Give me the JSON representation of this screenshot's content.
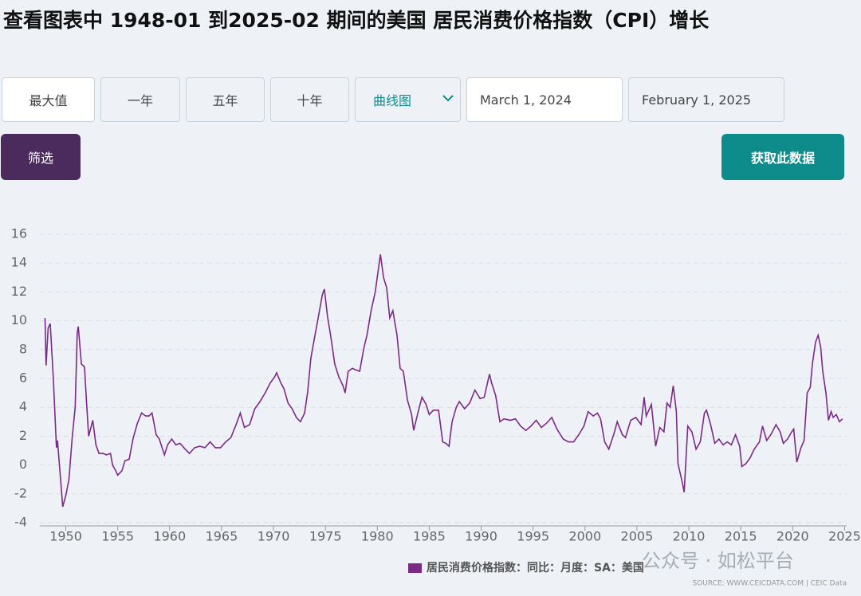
{
  "header": {
    "title": "查看图表中 1948-01 到2025-02 期间的美国 居民消费价格指数（CPI）增长"
  },
  "controls": {
    "ranges": [
      "最大值",
      "一年",
      "五年",
      "十年"
    ],
    "chart_type": "曲线图",
    "start_date": "March 1, 2024",
    "end_date": "February 1, 2025",
    "filter": "筛选",
    "get_data": "获取此数据"
  },
  "chart_data": {
    "type": "line",
    "x": [
      1948.0,
      1948.1,
      1948.3,
      1948.5,
      1948.8,
      1949.1,
      1949.2,
      1949.5,
      1949.7,
      1950.0,
      1950.3,
      1950.6,
      1950.9,
      1951.1,
      1951.2,
      1951.5,
      1951.8,
      1952.0,
      1952.2,
      1952.6,
      1952.9,
      1953.2,
      1953.6,
      1953.9,
      1954.3,
      1954.5,
      1954.8,
      1955.0,
      1955.4,
      1955.7,
      1956.1,
      1956.5,
      1956.9,
      1957.3,
      1957.7,
      1958.0,
      1958.3,
      1958.7,
      1959.0,
      1959.5,
      1959.8,
      1960.2,
      1960.6,
      1961.0,
      1961.5,
      1961.9,
      1962.4,
      1962.9,
      1963.4,
      1963.9,
      1964.4,
      1964.9,
      1965.4,
      1965.9,
      1966.4,
      1966.8,
      1967.2,
      1967.7,
      1968.2,
      1968.7,
      1969.2,
      1969.7,
      1970.1,
      1970.3,
      1970.7,
      1971.0,
      1971.4,
      1971.8,
      1972.2,
      1972.6,
      1973.0,
      1973.3,
      1973.6,
      1973.9,
      1974.3,
      1974.7,
      1974.9,
      1975.2,
      1975.5,
      1975.9,
      1976.3,
      1976.7,
      1976.9,
      1977.2,
      1977.6,
      1977.9,
      1978.3,
      1978.7,
      1979.0,
      1979.4,
      1979.8,
      1980.2,
      1980.3,
      1980.6,
      1980.9,
      1981.2,
      1981.5,
      1981.9,
      1982.2,
      1982.5,
      1982.9,
      1983.3,
      1983.5,
      1983.9,
      1984.3,
      1984.7,
      1985.0,
      1985.4,
      1985.9,
      1986.3,
      1986.6,
      1986.9,
      1987.2,
      1987.6,
      1987.9,
      1988.4,
      1988.9,
      1989.4,
      1989.9,
      1990.3,
      1990.8,
      1991.0,
      1991.4,
      1991.8,
      1992.2,
      1992.8,
      1993.3,
      1993.8,
      1994.3,
      1994.8,
      1995.3,
      1995.8,
      1996.3,
      1996.8,
      1997.3,
      1997.9,
      1998.4,
      1998.9,
      1999.4,
      1999.9,
      2000.3,
      2000.8,
      2001.2,
      2001.5,
      2001.9,
      2002.3,
      2002.8,
      2003.1,
      2003.6,
      2003.9,
      2004.4,
      2004.9,
      2005.4,
      2005.7,
      2005.9,
      2006.4,
      2006.8,
      2007.2,
      2007.6,
      2007.9,
      2008.2,
      2008.5,
      2008.8,
      2008.95,
      2009.4,
      2009.55,
      2009.9,
      2010.3,
      2010.7,
      2011.1,
      2011.5,
      2011.7,
      2012.1,
      2012.5,
      2012.9,
      2013.3,
      2013.7,
      2014.1,
      2014.5,
      2014.9,
      2015.1,
      2015.5,
      2015.9,
      2016.3,
      2016.8,
      2017.1,
      2017.5,
      2017.9,
      2018.4,
      2018.8,
      2019.1,
      2019.5,
      2019.9,
      2020.1,
      2020.4,
      2020.8,
      2021.1,
      2021.4,
      2021.7,
      2021.9,
      2022.2,
      2022.45,
      2022.7,
      2022.9,
      2023.2,
      2023.45,
      2023.7,
      2023.9,
      2024.2,
      2024.5,
      2024.8
    ],
    "series": [
      {
        "name": "居民消费价格指数：同比：月度：SA：美国",
        "color": "#7b2a85",
        "values": [
          10.2,
          6.9,
          9.5,
          9.8,
          6.0,
          1.2,
          1.7,
          -1.0,
          -2.9,
          -2.1,
          -1.0,
          1.8,
          4.0,
          9.2,
          9.6,
          7.0,
          6.8,
          4.3,
          2.0,
          3.1,
          1.4,
          0.8,
          0.8,
          0.7,
          0.8,
          0.0,
          -0.4,
          -0.7,
          -0.4,
          0.3,
          0.4,
          1.9,
          2.9,
          3.6,
          3.4,
          3.4,
          3.6,
          2.1,
          1.8,
          0.7,
          1.4,
          1.8,
          1.4,
          1.5,
          1.1,
          0.8,
          1.2,
          1.3,
          1.2,
          1.6,
          1.2,
          1.2,
          1.6,
          1.9,
          2.8,
          3.6,
          2.6,
          2.8,
          3.9,
          4.4,
          5.0,
          5.7,
          6.1,
          6.4,
          5.7,
          5.3,
          4.3,
          3.9,
          3.3,
          3.0,
          3.6,
          5.1,
          7.4,
          8.6,
          10.2,
          11.8,
          12.2,
          10.3,
          9.0,
          7.0,
          6.1,
          5.5,
          5.0,
          6.5,
          6.7,
          6.6,
          6.5,
          8.1,
          9.0,
          10.7,
          12.0,
          14.1,
          14.6,
          13.0,
          12.3,
          10.2,
          10.7,
          9.0,
          6.7,
          6.5,
          4.5,
          3.5,
          2.4,
          3.6,
          4.7,
          4.2,
          3.5,
          3.8,
          3.8,
          1.6,
          1.5,
          1.3,
          3.0,
          4.0,
          4.4,
          3.9,
          4.3,
          5.2,
          4.6,
          4.7,
          6.3,
          5.7,
          4.8,
          3.0,
          3.2,
          3.1,
          3.2,
          2.7,
          2.4,
          2.7,
          3.1,
          2.6,
          2.9,
          3.3,
          2.5,
          1.8,
          1.6,
          1.6,
          2.1,
          2.7,
          3.7,
          3.4,
          3.6,
          3.2,
          1.6,
          1.1,
          2.2,
          3.0,
          2.1,
          1.9,
          3.1,
          3.3,
          2.8,
          4.7,
          3.4,
          4.2,
          1.3,
          2.6,
          2.3,
          4.3,
          4.0,
          5.5,
          3.7,
          0.1,
          -1.3,
          -1.9,
          2.7,
          2.3,
          1.1,
          1.6,
          3.6,
          3.8,
          2.8,
          1.5,
          1.8,
          1.4,
          1.6,
          1.4,
          2.1,
          1.3,
          -0.1,
          0.1,
          0.5,
          1.1,
          1.6,
          2.7,
          1.7,
          2.1,
          2.8,
          2.3,
          1.5,
          1.8,
          2.3,
          2.5,
          0.2,
          1.2,
          1.7,
          5.0,
          5.4,
          7.0,
          8.5,
          9.0,
          8.2,
          6.5,
          5.0,
          3.1,
          3.7,
          3.3,
          3.5,
          3.0,
          3.2
        ]
      }
    ],
    "xlim": [
      1947.5,
      2025.2
    ],
    "xticks": [
      1950,
      1955,
      1960,
      1965,
      1970,
      1975,
      1980,
      1985,
      1990,
      1995,
      2000,
      2005,
      2010,
      2015,
      2020,
      2025
    ],
    "ylim": [
      -4,
      16
    ],
    "yticks": [
      -4,
      -2,
      0,
      2,
      4,
      6,
      8,
      10,
      12,
      14,
      16
    ],
    "grid": true,
    "source": "SOURCE: WWW.CEICDATA.COM | CEIC Data"
  },
  "watermark": "公众号 · 如松平台"
}
